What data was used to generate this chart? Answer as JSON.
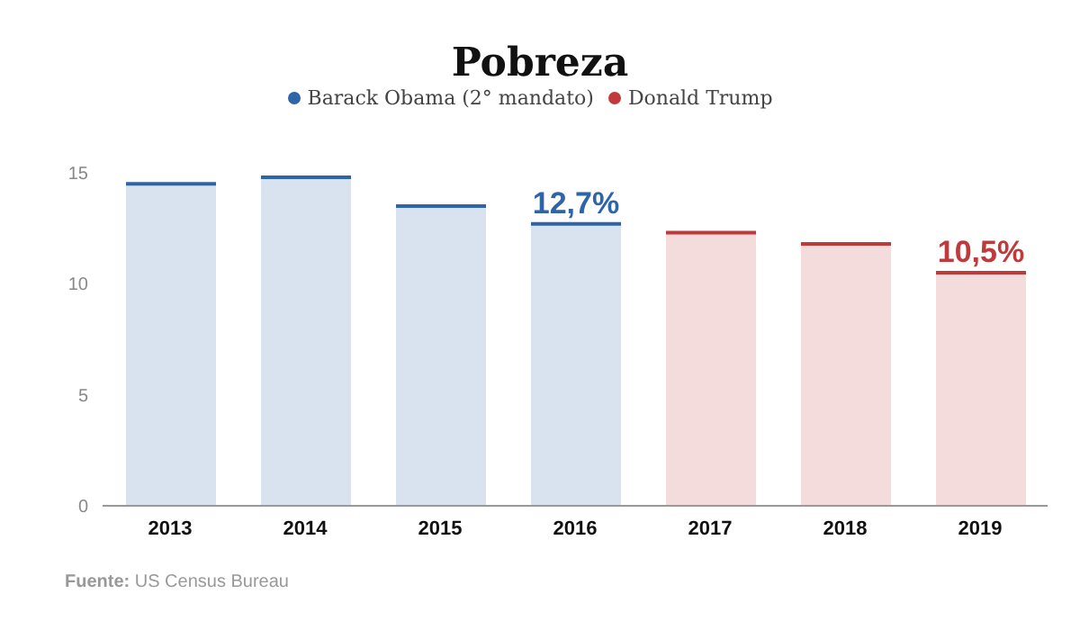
{
  "chart_data": {
    "type": "bar",
    "title": "Pobreza",
    "categories": [
      "2013",
      "2014",
      "2015",
      "2016",
      "2017",
      "2018",
      "2019"
    ],
    "series": [
      {
        "name": "Barack Obama (2° mandato)",
        "color": "#2e64a8",
        "values": [
          14.5,
          14.8,
          13.5,
          12.7,
          null,
          null,
          null
        ],
        "value_labels": [
          null,
          null,
          null,
          "12,7%",
          null,
          null,
          null
        ]
      },
      {
        "name": "Donald Trump",
        "color": "#c0393b",
        "values": [
          null,
          null,
          null,
          null,
          12.3,
          11.8,
          10.5
        ],
        "value_labels": [
          null,
          null,
          null,
          null,
          null,
          null,
          "10,5%"
        ]
      }
    ],
    "ylim": [
      0,
      15
    ],
    "yticks": [
      0,
      5,
      10,
      15
    ],
    "grid": false,
    "legend": "top",
    "annotations": [
      "Fuente: US Census Bureau"
    ]
  }
}
